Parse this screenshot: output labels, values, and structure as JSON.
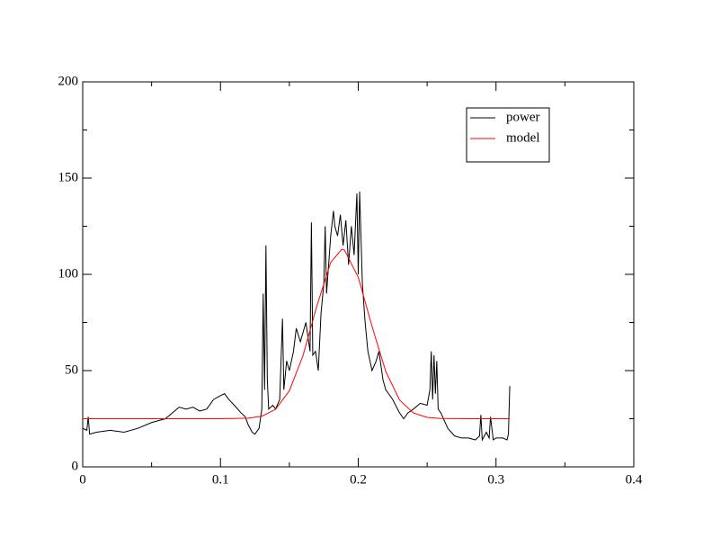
{
  "chart_data": {
    "type": "line",
    "xlim": [
      0,
      0.4
    ],
    "xticks": [
      0,
      0.1,
      0.2,
      0.3,
      0.4
    ],
    "xminorticks": [
      0.05,
      0.15,
      0.25,
      0.35
    ],
    "ylim": [
      0,
      200
    ],
    "yticks": [
      0,
      50,
      100,
      150,
      200
    ],
    "yminorticks": [
      25,
      75,
      125,
      175
    ],
    "grid": false,
    "legend": "top-right",
    "series": [
      {
        "name": "power",
        "color": "#000000",
        "x": [
          0,
          0.003,
          0.004,
          0.005,
          0.01,
          0.02,
          0.03,
          0.04,
          0.05,
          0.055,
          0.06,
          0.065,
          0.07,
          0.075,
          0.08,
          0.085,
          0.09,
          0.095,
          0.1,
          0.103,
          0.106,
          0.11,
          0.115,
          0.118,
          0.12,
          0.123,
          0.125,
          0.128,
          0.13,
          0.131,
          0.132,
          0.133,
          0.134,
          0.135,
          0.138,
          0.14,
          0.143,
          0.145,
          0.146,
          0.148,
          0.15,
          0.153,
          0.155,
          0.158,
          0.16,
          0.162,
          0.164,
          0.165,
          0.166,
          0.167,
          0.169,
          0.171,
          0.173,
          0.175,
          0.176,
          0.177,
          0.179,
          0.18,
          0.182,
          0.183,
          0.185,
          0.187,
          0.189,
          0.191,
          0.193,
          0.195,
          0.197,
          0.199,
          0.2,
          0.201,
          0.203,
          0.205,
          0.207,
          0.21,
          0.213,
          0.215,
          0.218,
          0.22,
          0.225,
          0.23,
          0.233,
          0.236,
          0.24,
          0.245,
          0.25,
          0.252,
          0.253,
          0.254,
          0.255,
          0.256,
          0.257,
          0.258,
          0.26,
          0.265,
          0.27,
          0.275,
          0.28,
          0.285,
          0.288,
          0.289,
          0.29,
          0.293,
          0.295,
          0.296,
          0.298,
          0.3,
          0.305,
          0.308,
          0.309,
          0.31
        ],
        "values": [
          20,
          19,
          26,
          17,
          18,
          19,
          18,
          20,
          23,
          24,
          25,
          28,
          31,
          30,
          31,
          29,
          30,
          35,
          37,
          38,
          35,
          32,
          28,
          26,
          22,
          18,
          17,
          20,
          30,
          90,
          40,
          115,
          45,
          30,
          32,
          30,
          35,
          77,
          40,
          55,
          50,
          60,
          72,
          65,
          70,
          75,
          65,
          60,
          127,
          58,
          60,
          50,
          80,
          95,
          125,
          90,
          110,
          120,
          133,
          125,
          120,
          131,
          115,
          128,
          105,
          125,
          110,
          142,
          100,
          143,
          95,
          75,
          60,
          50,
          55,
          60,
          45,
          40,
          35,
          28,
          25,
          28,
          30,
          33,
          32,
          40,
          60,
          35,
          58,
          38,
          55,
          30,
          28,
          20,
          16,
          15,
          15,
          14,
          16,
          27,
          14,
          18,
          15,
          26,
          14,
          15,
          15,
          14,
          17,
          42
        ]
      },
      {
        "name": "model",
        "color": "#ff0000",
        "x": [
          0,
          0.05,
          0.1,
          0.12,
          0.13,
          0.14,
          0.15,
          0.16,
          0.17,
          0.18,
          0.188,
          0.19,
          0.2,
          0.21,
          0.22,
          0.23,
          0.24,
          0.25,
          0.26,
          0.28,
          0.31
        ],
        "values": [
          25,
          25,
          25,
          25.3,
          26.3,
          29.9,
          39.5,
          58,
          83.7,
          106.2,
          113,
          112.6,
          98.5,
          73,
          49.5,
          34.7,
          28,
          25.7,
          25.1,
          25,
          25
        ]
      }
    ]
  }
}
